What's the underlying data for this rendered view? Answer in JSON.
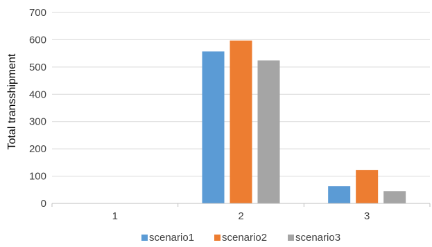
{
  "chart_data": {
    "type": "bar",
    "title": "",
    "xlabel": "",
    "ylabel": "Total transshipment",
    "categories": [
      "1",
      "2",
      "3"
    ],
    "ylim": [
      0,
      700
    ],
    "yticks": [
      0,
      100,
      200,
      300,
      400,
      500,
      600,
      700
    ],
    "grid": true,
    "legend_position": "bottom",
    "series": [
      {
        "name": "scenario1",
        "color": "#5B9BD5",
        "values": [
          0,
          557,
          63
        ]
      },
      {
        "name": "scenario2",
        "color": "#ED7D31",
        "values": [
          0,
          597,
          122
        ]
      },
      {
        "name": "scenario3",
        "color": "#A5A5A5",
        "values": [
          0,
          524,
          45
        ]
      }
    ]
  }
}
